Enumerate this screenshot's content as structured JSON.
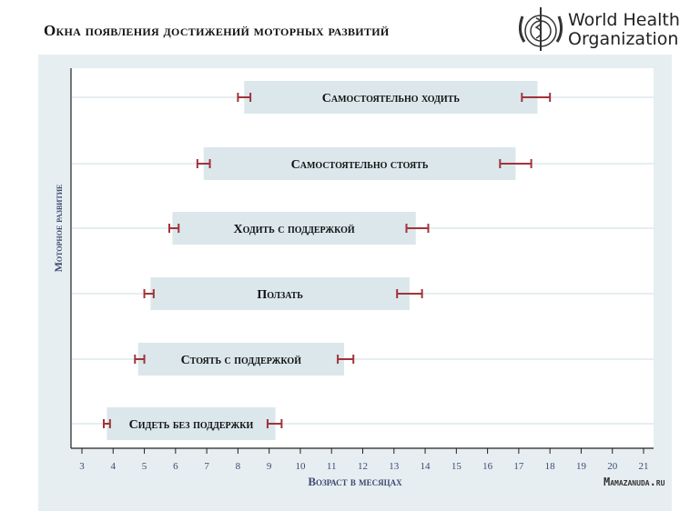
{
  "header": {
    "logo_text_line1": "World Health",
    "logo_text_line2": "Organization"
  },
  "watermark": "Mamazanuda.ru",
  "colors": {
    "panel_bg": "#e6eef1",
    "bar_fill": "#dbe7eb",
    "error_bar": "#a0343a",
    "axis_label": "#3d4a72"
  },
  "chart_data": {
    "type": "range-bar",
    "title": "Окна появления достижений моторных развитий",
    "xlabel": "Возраст в месяцах",
    "ylabel": "Моторное развитие",
    "xlim": [
      3,
      21
    ],
    "xticks": [
      3,
      4,
      5,
      6,
      7,
      8,
      9,
      10,
      11,
      12,
      13,
      14,
      15,
      16,
      17,
      18,
      19,
      20,
      21
    ],
    "grid": "horizontal",
    "milestones": [
      {
        "label": "Самостоятельно ходить",
        "start": 8.2,
        "end": 17.6,
        "start_ci": [
          8.0,
          8.4
        ],
        "end_ci": [
          17.1,
          18.0
        ]
      },
      {
        "label": "Самостоятельно стоять",
        "start": 6.9,
        "end": 16.9,
        "start_ci": [
          6.7,
          7.1
        ],
        "end_ci": [
          16.4,
          17.4
        ]
      },
      {
        "label": "Ходить с поддержкой",
        "start": 5.9,
        "end": 13.7,
        "start_ci": [
          5.8,
          6.1
        ],
        "end_ci": [
          13.4,
          14.1
        ]
      },
      {
        "label": "Ползать",
        "start": 5.2,
        "end": 13.5,
        "start_ci": [
          5.0,
          5.3
        ],
        "end_ci": [
          13.1,
          13.9
        ]
      },
      {
        "label": "Стоять с поддержкой",
        "start": 4.8,
        "end": 11.4,
        "start_ci": [
          4.7,
          5.0
        ],
        "end_ci": [
          11.2,
          11.7
        ]
      },
      {
        "label": "Сидеть без поддержки",
        "start": 3.8,
        "end": 9.2,
        "start_ci": [
          3.7,
          3.9
        ],
        "end_ci": [
          8.95,
          9.4
        ]
      }
    ]
  }
}
